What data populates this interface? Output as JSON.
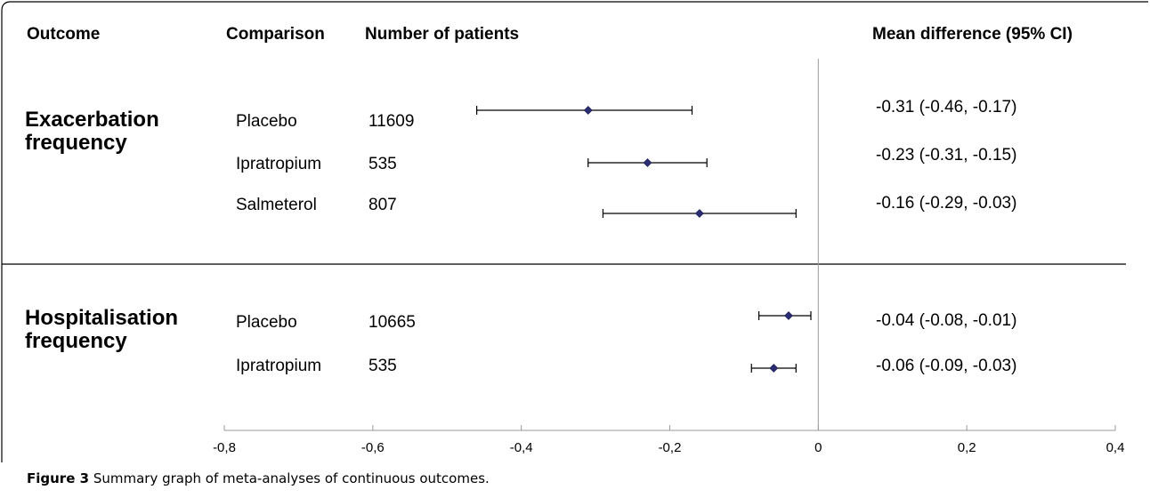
{
  "columns": {
    "outcome": "Outcome",
    "comparison": "Comparison",
    "patients": "Number of patients",
    "effect": "Mean difference (95% CI)"
  },
  "caption": {
    "label": "Figure 3",
    "text": "Summary graph of meta-analyses of continuous outcomes",
    "end": "."
  },
  "groups": [
    {
      "line1": "Exacerbation",
      "line2": "frequency",
      "rows": [
        {
          "comparison": "Placebo",
          "patients": "11609",
          "ci_text": "-0.31 (-0.46, -0.17)"
        },
        {
          "comparison": "Ipratropium",
          "patients": "535",
          "ci_text": "-0.23 (-0.31, -0.15)"
        },
        {
          "comparison": "Salmeterol",
          "patients": "807",
          "ci_text": "-0.16 (-0.29, -0.03)"
        }
      ]
    },
    {
      "line1": "Hospitalisation",
      "line2": "frequency",
      "rows": [
        {
          "comparison": "Placebo",
          "patients": "10665",
          "ci_text": "-0.04 (-0.08, -0.01)"
        },
        {
          "comparison": "Ipratropium",
          "patients": "535",
          "ci_text": "-0.06 (-0.09, -0.03)"
        }
      ]
    }
  ],
  "chart_data": {
    "type": "scatter",
    "xlim": [
      -0.8,
      0.4
    ],
    "x_ticks": [
      -0.8,
      -0.6,
      -0.4,
      -0.2,
      0,
      0.2,
      0.4
    ],
    "x_tick_labels": [
      "-0,8",
      "-0,6",
      "-0,4",
      "-0,2",
      "0",
      "0,2",
      "0,4"
    ],
    "reference_line": 0,
    "marker_color": "#2b2d73",
    "points": [
      {
        "mean": -0.31,
        "low": -0.46,
        "high": -0.17
      },
      {
        "mean": -0.23,
        "low": -0.31,
        "high": -0.15
      },
      {
        "mean": -0.16,
        "low": -0.29,
        "high": -0.03
      },
      {
        "mean": -0.04,
        "low": -0.08,
        "high": -0.01
      },
      {
        "mean": -0.06,
        "low": -0.09,
        "high": -0.03
      }
    ]
  }
}
